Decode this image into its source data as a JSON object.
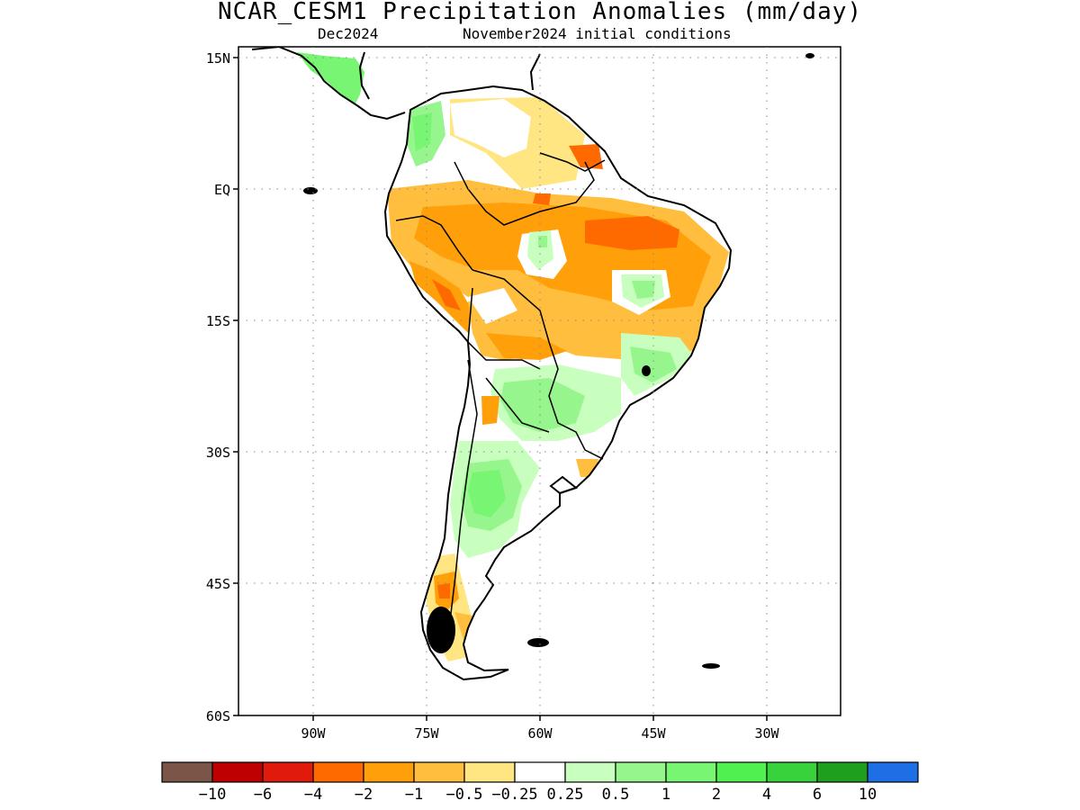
{
  "title": "NCAR_CESM1 Precipitation Anomalies (mm/day)",
  "subtitle_left": "Dec2024",
  "subtitle_right": "November2024 initial conditions",
  "map": {
    "lat_labels": [
      "15N",
      "EQ",
      "15S",
      "30S",
      "45S",
      "60S"
    ],
    "lon_labels": [
      "90W",
      "75W",
      "60W",
      "45W",
      "30W"
    ]
  },
  "colorbar": {
    "colors": [
      "#7a5548",
      "#bf0000",
      "#e01b0c",
      "#ff6a00",
      "#ffa00a",
      "#ffbe3d",
      "#ffe682",
      "#ffffff",
      "#c8ffbe",
      "#96f58c",
      "#78f573",
      "#50f050",
      "#37d23c",
      "#1ea01e",
      "#1e6ee6"
    ],
    "labels": [
      "−10",
      "−6",
      "−4",
      "−2",
      "−1",
      "−0.5",
      "−0.25",
      "0.25",
      "0.5",
      "1",
      "2",
      "4",
      "6",
      "10"
    ]
  }
}
